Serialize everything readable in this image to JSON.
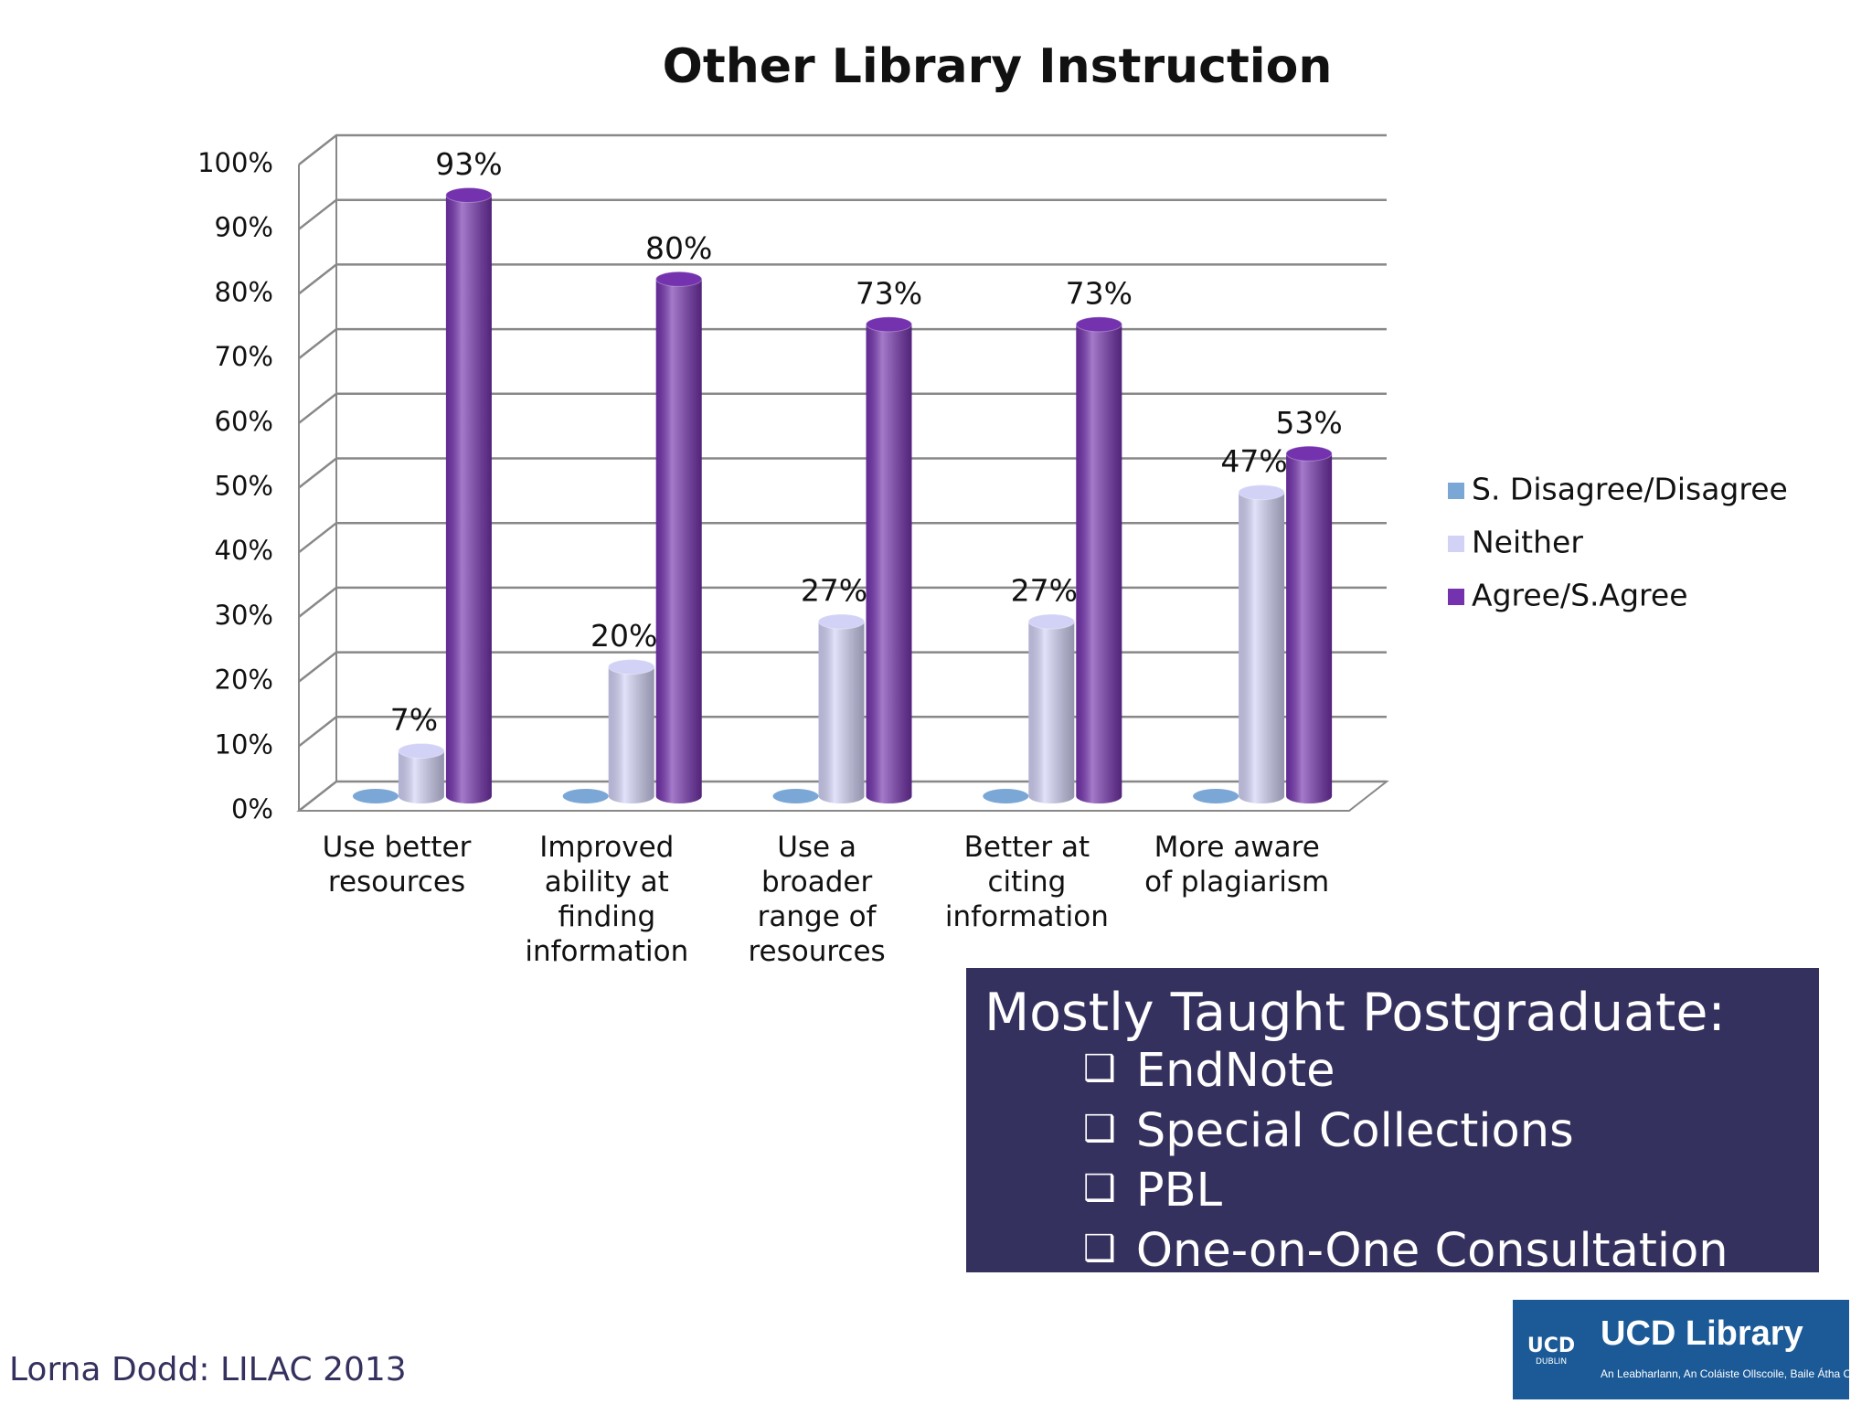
{
  "chart_data": {
    "type": "bar3d",
    "title": "Other Library Instruction",
    "categories": [
      "Use better\nresources",
      "Improved\nability at\nfinding\ninformation",
      "Use a\nbroader\nrange of\nresources",
      "Better at\nciting\ninformation",
      "More aware\nof plagiarism"
    ],
    "series": [
      {
        "name": "S. Disagree/Disagree",
        "color": "#7ba7d6",
        "values": [
          0,
          0,
          0,
          0,
          0
        ]
      },
      {
        "name": "Neither",
        "color": "#d2d2f7",
        "values": [
          7,
          20,
          27,
          27,
          47
        ],
        "value_labels": [
          "7%",
          "20%",
          "27%",
          "27%",
          "47%"
        ]
      },
      {
        "name": "Agree/S.Agree",
        "color": "#7432ae",
        "values": [
          93,
          80,
          73,
          73,
          53
        ],
        "value_labels": [
          "93%",
          "80%",
          "73%",
          "73%",
          "53%"
        ]
      }
    ],
    "ylim": [
      0,
      100
    ],
    "yticks": [
      {
        "value": 0,
        "label": "0%"
      },
      {
        "value": 10,
        "label": "10%"
      },
      {
        "value": 20,
        "label": "20%"
      },
      {
        "value": 30,
        "label": "30%"
      },
      {
        "value": 40,
        "label": "40%"
      },
      {
        "value": 50,
        "label": "50%"
      },
      {
        "value": 60,
        "label": "60%"
      },
      {
        "value": 70,
        "label": "70%"
      },
      {
        "value": 80,
        "label": "80%"
      },
      {
        "value": 90,
        "label": "90%"
      },
      {
        "value": 100,
        "label": "100%"
      }
    ],
    "grid": true,
    "legend": "right"
  },
  "box": {
    "heading": "Mostly Taught Postgraduate:",
    "items": [
      "EndNote",
      "Special Collections",
      "PBL",
      "One-on-One Consultation"
    ]
  },
  "footer": "Lorna Dodd: LILAC 2013",
  "logo": {
    "crest": "UCD",
    "crest_sub": "DUBLIN",
    "name": "UCD Library",
    "subtitle": "An Leabharlann, An Coláiste Ollscoile, Baile Átha Cliath"
  }
}
